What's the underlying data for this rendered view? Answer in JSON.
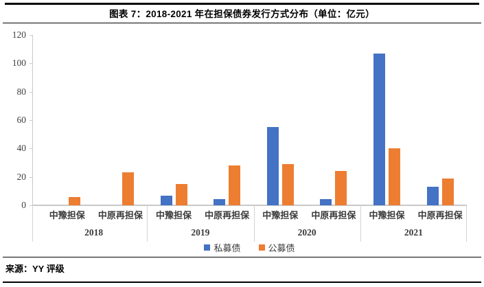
{
  "title": "图表 7：2018-2021 年在担保债券发行方式分布（单位：亿元）",
  "source": "来源：YY 评级",
  "legend": [
    {
      "label": "私募债",
      "color": "#4472C4"
    },
    {
      "label": "公募债",
      "color": "#ED7D31"
    }
  ],
  "colors": {
    "private_bond": "#4472C4",
    "public_bond": "#ED7D31",
    "axis_line": "#c9c9c9",
    "axis_text": "#404040",
    "title_text": "#000000"
  },
  "y_axis": {
    "min": 0,
    "max": 120,
    "step": 20,
    "ticks": [
      120,
      100,
      80,
      60,
      40,
      20,
      0
    ]
  },
  "chart_data": {
    "type": "bar",
    "title": "图表 7：2018-2021 年在担保债券发行方式分布（单位：亿元）",
    "unit": "亿元",
    "xlabel": "",
    "ylabel": "",
    "ylim": [
      0,
      120
    ],
    "grid": false,
    "legend_position": "bottom",
    "series_names": [
      "私募债",
      "公募债"
    ],
    "groups": [
      {
        "year": "2018",
        "categories": [
          "中豫担保",
          "中原再担保"
        ],
        "series": [
          {
            "name": "私募债",
            "values": [
              0,
              0
            ]
          },
          {
            "name": "公募债",
            "values": [
              6,
              23
            ]
          }
        ]
      },
      {
        "year": "2019",
        "categories": [
          "中豫担保",
          "中原再担保"
        ],
        "series": [
          {
            "name": "私募债",
            "values": [
              7,
              4.5
            ]
          },
          {
            "name": "公募债",
            "values": [
              15,
              28
            ]
          }
        ]
      },
      {
        "year": "2020",
        "categories": [
          "中豫担保",
          "中原再担保"
        ],
        "series": [
          {
            "name": "私募债",
            "values": [
              55,
              4.5
            ]
          },
          {
            "name": "公募债",
            "values": [
              29,
              24
            ]
          }
        ]
      },
      {
        "year": "2021",
        "categories": [
          "中豫担保",
          "中原再担保"
        ],
        "series": [
          {
            "name": "私募债",
            "values": [
              107,
              13
            ]
          },
          {
            "name": "公募债",
            "values": [
              40,
              19
            ]
          }
        ]
      }
    ]
  }
}
